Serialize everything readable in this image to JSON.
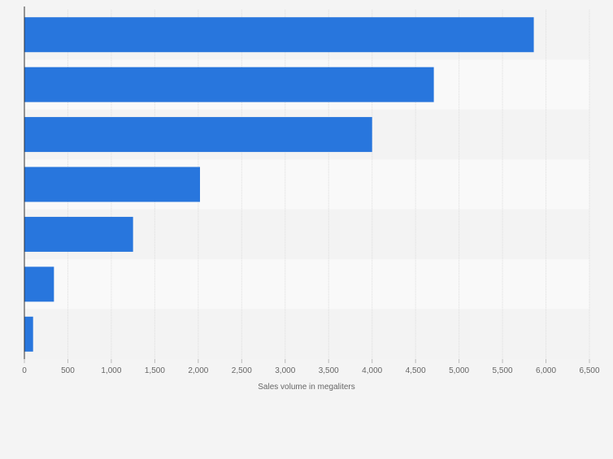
{
  "chart_data": {
    "type": "bar",
    "orientation": "horizontal",
    "title": "",
    "categories": [
      "",
      "",
      "",
      "",
      "",
      "",
      ""
    ],
    "values": [
      5860,
      4710,
      4000,
      2020,
      1250,
      340,
      100
    ],
    "xlabel": "Sales volume in megaliters",
    "ylabel": "",
    "xlim": [
      0,
      6500
    ],
    "xticks": [
      0,
      500,
      1000,
      1500,
      2000,
      2500,
      3000,
      3500,
      4000,
      4500,
      5000,
      5500,
      6000,
      6500
    ],
    "xtick_labels": [
      "0",
      "500",
      "1,000",
      "1,500",
      "2,000",
      "2,500",
      "3,000",
      "3,500",
      "4,000",
      "4,500",
      "5,000",
      "5,500",
      "6,000",
      "6,500"
    ],
    "grid": "vertical",
    "legend": "none",
    "colors": {
      "bar": "#2876dd",
      "background": "#f4f4f4",
      "band_light": "#f9f9f9",
      "band_dark": "#f3f3f3",
      "grid": "#dddddd",
      "axis": "#333333",
      "tick_text": "#666666"
    }
  }
}
